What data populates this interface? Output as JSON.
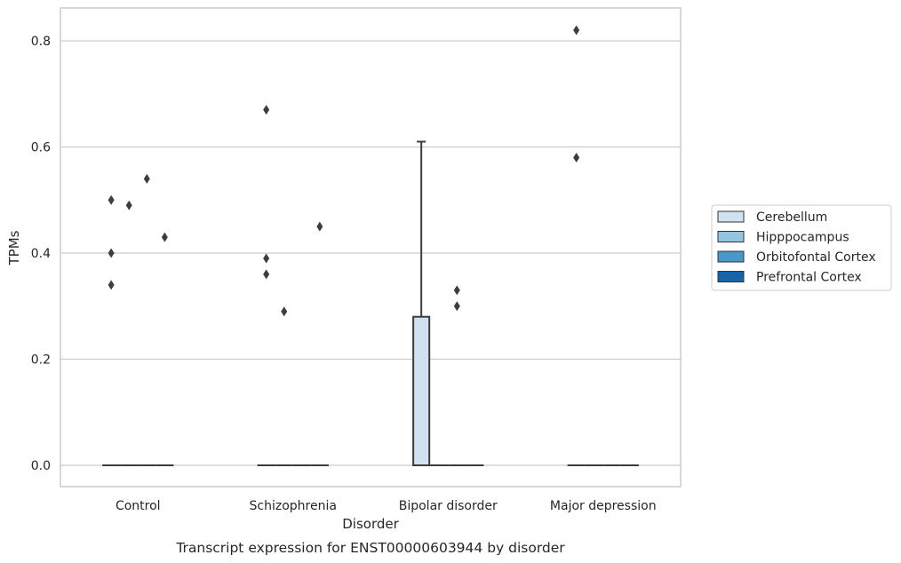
{
  "chart_data": {
    "type": "box",
    "title": "",
    "caption": "Transcript expression for ENST00000603944 by disorder",
    "xlabel": "Disorder",
    "ylabel": "TPMs",
    "ylim": [
      -0.04,
      0.86
    ],
    "yticks": [
      0.0,
      0.2,
      0.4,
      0.6,
      0.8
    ],
    "ytick_labels": [
      "0.0",
      "0.2",
      "0.4",
      "0.6",
      "0.8"
    ],
    "categories": [
      "Control",
      "Schizophrenia",
      "Bipolar disorder",
      "Major depression"
    ],
    "grid": "horizontal",
    "legend_position": "right",
    "series": [
      {
        "name": "Cerebellum",
        "color": "#d0e1f2",
        "boxes": [
          {
            "q1": 0,
            "median": 0,
            "q3": 0,
            "whisker_low": 0,
            "whisker_high": 0,
            "outliers": [
              0.5,
              0.4,
              0.34
            ]
          },
          {
            "q1": 0,
            "median": 0,
            "q3": 0,
            "whisker_low": 0,
            "whisker_high": 0,
            "outliers": [
              0.67,
              0.39,
              0.36
            ]
          },
          {
            "q1": 0,
            "median": 0,
            "q3": 0.28,
            "whisker_low": 0,
            "whisker_high": 0.61,
            "outliers": []
          },
          {
            "q1": 0,
            "median": 0,
            "q3": 0,
            "whisker_low": 0,
            "whisker_high": 0,
            "outliers": [
              0.82,
              0.58
            ]
          }
        ]
      },
      {
        "name": "Hipppocampus",
        "color": "#94c4df",
        "boxes": [
          {
            "q1": 0,
            "median": 0,
            "q3": 0,
            "whisker_low": 0,
            "whisker_high": 0,
            "outliers": [
              0.49
            ]
          },
          {
            "q1": 0,
            "median": 0,
            "q3": 0,
            "whisker_low": 0,
            "whisker_high": 0,
            "outliers": [
              0.29
            ]
          },
          {
            "q1": 0,
            "median": 0,
            "q3": 0,
            "whisker_low": 0,
            "whisker_high": 0,
            "outliers": []
          },
          {
            "q1": 0,
            "median": 0,
            "q3": 0,
            "whisker_low": 0,
            "whisker_high": 0,
            "outliers": []
          }
        ]
      },
      {
        "name": "Orbitofontal Cortex",
        "color": "#4a98c9",
        "boxes": [
          {
            "q1": 0,
            "median": 0,
            "q3": 0,
            "whisker_low": 0,
            "whisker_high": 0,
            "outliers": [
              0.54
            ]
          },
          {
            "q1": 0,
            "median": 0,
            "q3": 0,
            "whisker_low": 0,
            "whisker_high": 0,
            "outliers": []
          },
          {
            "q1": 0,
            "median": 0,
            "q3": 0,
            "whisker_low": 0,
            "whisker_high": 0,
            "outliers": [
              0.33,
              0.3
            ]
          },
          {
            "q1": 0,
            "median": 0,
            "q3": 0,
            "whisker_low": 0,
            "whisker_high": 0,
            "outliers": []
          }
        ]
      },
      {
        "name": "Prefrontal Cortex",
        "color": "#1764ab",
        "boxes": [
          {
            "q1": 0,
            "median": 0,
            "q3": 0,
            "whisker_low": 0,
            "whisker_high": 0,
            "outliers": [
              0.43
            ]
          },
          {
            "q1": 0,
            "median": 0,
            "q3": 0,
            "whisker_low": 0,
            "whisker_high": 0,
            "outliers": [
              0.45
            ]
          },
          {
            "q1": 0,
            "median": 0,
            "q3": 0,
            "whisker_low": 0,
            "whisker_high": 0,
            "outliers": []
          },
          {
            "q1": 0,
            "median": 0,
            "q3": 0,
            "whisker_low": 0,
            "whisker_high": 0,
            "outliers": []
          }
        ]
      }
    ]
  }
}
